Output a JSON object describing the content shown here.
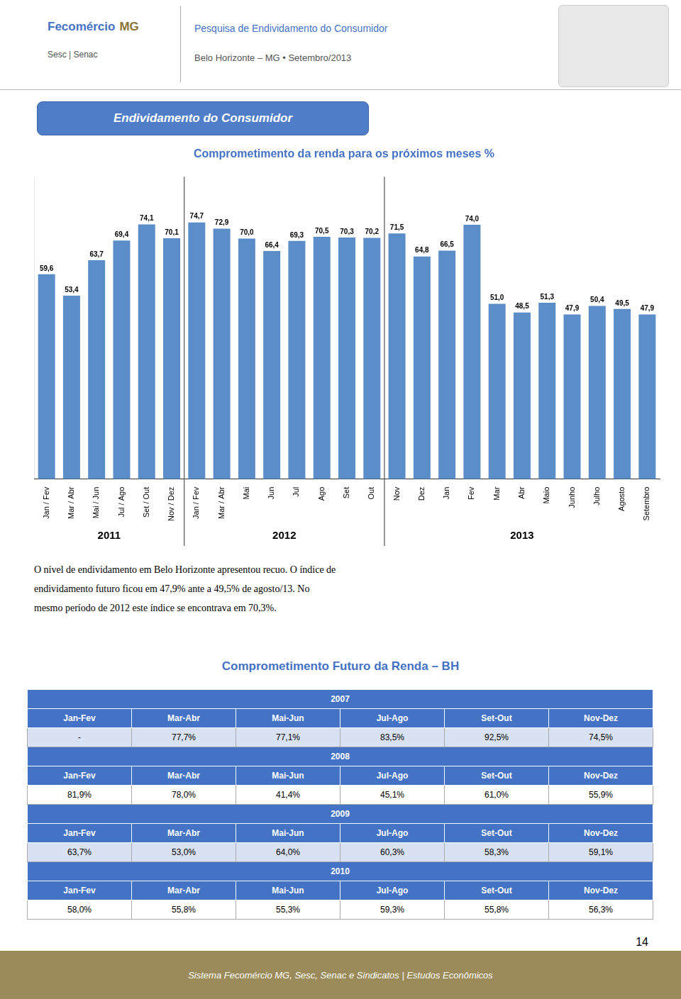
{
  "chart_data": {
    "type": "bar",
    "title": "Comprometimento da renda para os próximos meses %",
    "categories": [
      "Jan / Fev",
      "Mar / Abr",
      "Mai / Jun",
      "Jul / Ago",
      "Set / Out",
      "Nov / Dez",
      "Jan / Fev",
      "Mar / Abr",
      "Mai",
      "Jun",
      "Jul",
      "Ago",
      "Set",
      "Out",
      "Nov",
      "Dez",
      "Jan",
      "Fev",
      "Mar",
      "Abr",
      "Maio",
      "Junho",
      "Julho",
      "Agosto",
      "Setembro"
    ],
    "values": [
      59.6,
      53.4,
      63.7,
      69.4,
      74.1,
      70.1,
      74.7,
      72.9,
      70.0,
      66.4,
      69.3,
      70.5,
      70.3,
      70.2,
      71.5,
      64.8,
      66.5,
      74.0,
      51.0,
      48.5,
      51.3,
      47.9,
      50.4,
      49.5,
      47.9
    ],
    "value_labels": [
      "59,6",
      "53,4",
      "63,7",
      "69,4",
      "74,1",
      "70,1",
      "74,7",
      "72,9",
      "70,0",
      "66,4",
      "69,3",
      "70,5",
      "70,3",
      "70,2",
      "71,5",
      "64,8",
      "66,5",
      "74,0",
      "51,0",
      "48,5",
      "51,3",
      "47,9",
      "50,4",
      "49,5",
      "47,9"
    ],
    "color": "#5B8DC8",
    "ylim": [
      0,
      88
    ],
    "grid": false,
    "data_labels": true,
    "tick_labels": "x",
    "annotations": [
      {
        "text": "2011",
        "start": 0,
        "end": 5
      },
      {
        "text": "2012",
        "start": 6,
        "end": 13
      },
      {
        "text": "2013",
        "start": 14,
        "end": 24
      }
    ]
  },
  "page": {
    "logo": [
      "Fecomércio",
      "MG"
    ],
    "logo_sub": "Sesc | Senac",
    "header_line1": "Pesquisa de Endividamento do Consumidor",
    "header_line2": "Belo Horizonte – MG • Setembro/2013",
    "title_box": "Endividamento do Consumidor",
    "description": [
      "O nível de endividamento em Belo Horizonte apresentou recuo. O índice de",
      "endividamento futuro ficou em 47,9% ante a 49,5% de agosto/13. No",
      "mesmo período de 2012 este índice se encontrava em 70,3%."
    ],
    "table": {
      "title": "Comprometimento Futuro da Renda – BH",
      "headers": [
        "Jan-Fev",
        "Mar-Abr",
        "Mai-Jun",
        "Jul-Ago",
        "Set-Out",
        "Nov-Dez"
      ],
      "rows": [
        {
          "year": "2007",
          "values": [
            "-",
            "77,7%",
            "77,1%",
            "83,5%",
            "92,5%",
            "74,5%"
          ]
        },
        {
          "year": "2008",
          "values": [
            "81,9%",
            "78,0%",
            "41,4%",
            "45,1%",
            "61,0%",
            "55,9%"
          ]
        },
        {
          "year": "2009",
          "values": [
            "63,7%",
            "53,0%",
            "64,0%",
            "60,3%",
            "58,3%",
            "59,1%"
          ]
        },
        {
          "year": "2010",
          "values": [
            "58,0%",
            "55,8%",
            "55,3%",
            "59,3%",
            "55,8%",
            "56,3%"
          ]
        }
      ]
    },
    "page_number": "14",
    "footer": "Sistema Fecomércio MG, Sesc, Senac e Sindicatos | Estudos Econômicos"
  }
}
